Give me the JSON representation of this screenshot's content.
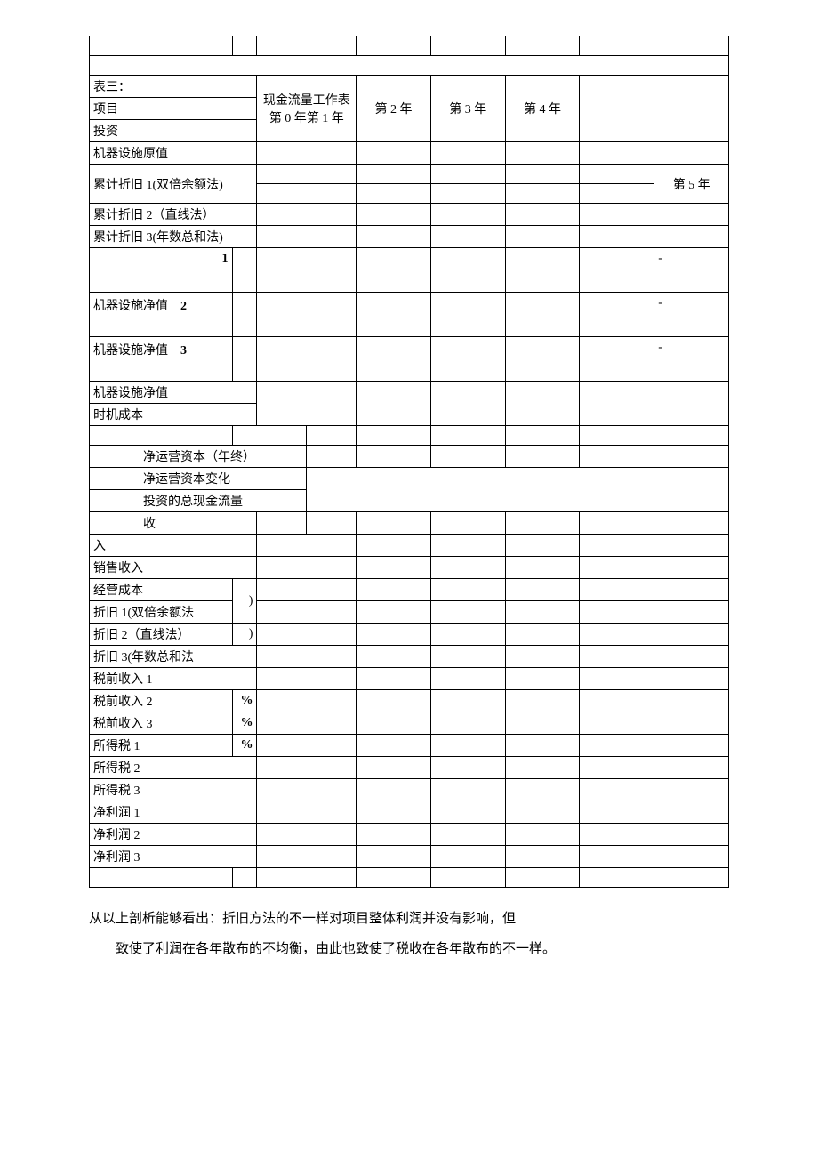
{
  "table": {
    "title_prefix": "表三：",
    "row_labels": {
      "project": "项目",
      "investment": "投资",
      "machine_original": "机器设施原值",
      "depreciation1": "累计折旧 1(双倍余额法)",
      "depreciation2": "累计折旧 2（直线法）",
      "depreciation3": "累计折旧 3(年数总和法)",
      "machine_net1_num": "1",
      "machine_net2": "机器设施净值",
      "machine_net2_num": "2",
      "machine_net3": "机器设施净值",
      "machine_net3_num": "3",
      "machine_net": "机器设施净值",
      "opportunity_cost": "时机成本",
      "net_working_capital": "净运营资本（年终）",
      "nwc_change": "净运营资本变化",
      "total_investment_cashflow": "投资的总现金流量",
      "income_prefix": "收",
      "income_suffix": "入",
      "sales_income": "销售收入",
      "operating_cost": "经营成本",
      "dep1_method": "折旧 1(双倍余额法",
      "dep2_method": "折旧 2（直线法）",
      "dep3_method": "折旧 3(年数总和法",
      "pretax_income1": "税前收入 1",
      "pretax_income2": "税前收入 2",
      "pretax_income3": "税前收入 3",
      "income_tax1": "所得税 1",
      "income_tax2": "所得税 2",
      "income_tax3": "所得税 3",
      "net_profit1": "净利润 1",
      "net_profit2": "净利润 2",
      "net_profit3": "净利润 3",
      "paren": ")",
      "percent": "%",
      "dash": "-"
    },
    "column_headers": {
      "cashflow_worksheet": "现金流量工作表",
      "year0": "第 0 年",
      "year1": "第 1 年",
      "year2": "第 2 年",
      "year3": "第 3 年",
      "year4": "第 4 年",
      "year5": "第 5 年"
    }
  },
  "analysis": {
    "line1": "从以上剖析能够看出：折旧方法的不一样对项目整体利润并没有影响，但",
    "line2": "致使了利润在各年散布的不均衡，由此也致使了税收在各年散布的不一样。"
  },
  "style": {
    "border_color": "#000000",
    "background_color": "#ffffff",
    "font_family": "SimSun",
    "base_font_size": 14
  }
}
